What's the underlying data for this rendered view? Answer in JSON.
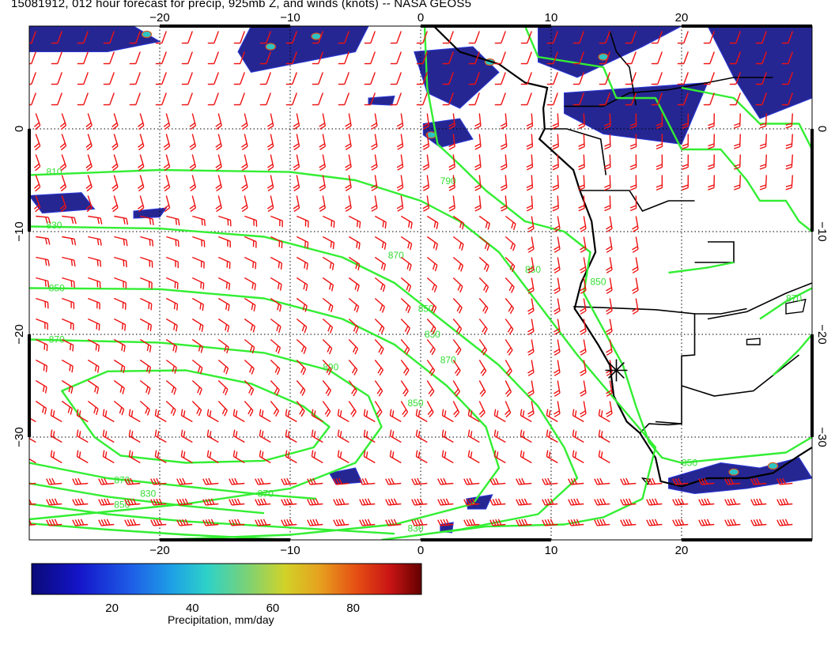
{
  "title": "15081912, 012 hour forecast for precip, 925mb Z, and winds (knots) -- NASA GEOS5",
  "map": {
    "lon_range": [
      -30,
      30
    ],
    "lat_range": [
      -40,
      10
    ],
    "lon_ticks": [
      -20,
      -10,
      0,
      10,
      20
    ],
    "lon_tick_labels": [
      "−20",
      "−10",
      "0",
      "10",
      "20"
    ],
    "lat_ticks": [
      0,
      -10,
      -20,
      -30
    ],
    "lat_tick_labels": [
      "0",
      "−10",
      "−20",
      "−30"
    ],
    "gridlines": true,
    "colors": {
      "contour": "#33ee33",
      "barb": "#ee1111",
      "coast": "#000000",
      "precip_low": "#1a1a8c"
    },
    "marker": {
      "lon": 15,
      "lat": -23.5,
      "symbol": "asterisk"
    }
  },
  "height_contours": {
    "units": "m",
    "labels": [
      "790",
      "810",
      "830",
      "850",
      "870",
      "890",
      "870",
      "850",
      "830",
      "870",
      "850",
      "870",
      "830",
      "850",
      "850",
      "850",
      "870",
      "850",
      "830",
      "870"
    ]
  },
  "colorbar": {
    "ticks": [
      "20",
      "40",
      "60",
      "80"
    ],
    "tick_values": [
      20,
      40,
      60,
      80
    ],
    "range": [
      0,
      97
    ],
    "label": "Precipitation, mm/day"
  }
}
